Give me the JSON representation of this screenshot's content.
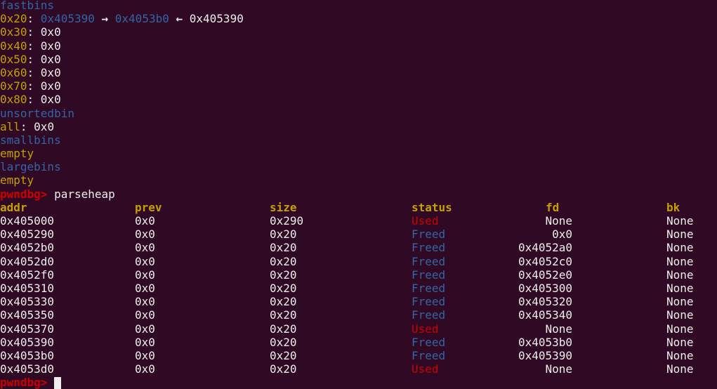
{
  "colors": {
    "background": "#300a24",
    "text": "#eeeeec",
    "yellow": "#c4a000",
    "blue": "#3465a4",
    "red": "#cc0000"
  },
  "fastbins": {
    "title": "fastbins",
    "chain": {
      "size": "0x20",
      "first": "0x405390",
      "arrow1": "→",
      "second": "0x4053b0",
      "arrow2": "←",
      "third": "0x405390"
    },
    "bins": [
      {
        "size": "0x30",
        "value": "0x0"
      },
      {
        "size": "0x40",
        "value": "0x0"
      },
      {
        "size": "0x50",
        "value": "0x0"
      },
      {
        "size": "0x60",
        "value": "0x0"
      },
      {
        "size": "0x70",
        "value": "0x0"
      },
      {
        "size": "0x80",
        "value": "0x0"
      }
    ]
  },
  "unsortedbin": {
    "title": "unsortedbin",
    "label": "all",
    "value": "0x0"
  },
  "smallbins": {
    "title": "smallbins",
    "value": "empty"
  },
  "largebins": {
    "title": "largebins",
    "value": "empty"
  },
  "prompt": {
    "text": "pwndbg>",
    "command": "parseheap"
  },
  "table": {
    "headers": {
      "addr": "addr",
      "prev": "prev",
      "size": "size",
      "status": "status",
      "fd": "fd",
      "bk": "bk"
    },
    "rows": [
      {
        "addr": "0x405000",
        "prev": "0x0",
        "size": "0x290",
        "status": "Used",
        "fd": "None",
        "bk": "None"
      },
      {
        "addr": "0x405290",
        "prev": "0x0",
        "size": "0x20",
        "status": "Freed",
        "fd": "0x0",
        "bk": "None"
      },
      {
        "addr": "0x4052b0",
        "prev": "0x0",
        "size": "0x20",
        "status": "Freed",
        "fd": "0x4052a0",
        "bk": "None"
      },
      {
        "addr": "0x4052d0",
        "prev": "0x0",
        "size": "0x20",
        "status": "Freed",
        "fd": "0x4052c0",
        "bk": "None"
      },
      {
        "addr": "0x4052f0",
        "prev": "0x0",
        "size": "0x20",
        "status": "Freed",
        "fd": "0x4052e0",
        "bk": "None"
      },
      {
        "addr": "0x405310",
        "prev": "0x0",
        "size": "0x20",
        "status": "Freed",
        "fd": "0x405300",
        "bk": "None"
      },
      {
        "addr": "0x405330",
        "prev": "0x0",
        "size": "0x20",
        "status": "Freed",
        "fd": "0x405320",
        "bk": "None"
      },
      {
        "addr": "0x405350",
        "prev": "0x0",
        "size": "0x20",
        "status": "Freed",
        "fd": "0x405340",
        "bk": "None"
      },
      {
        "addr": "0x405370",
        "prev": "0x0",
        "size": "0x20",
        "status": "Used",
        "fd": "None",
        "bk": "None"
      },
      {
        "addr": "0x405390",
        "prev": "0x0",
        "size": "0x20",
        "status": "Freed",
        "fd": "0x4053b0",
        "bk": "None"
      },
      {
        "addr": "0x4053b0",
        "prev": "0x0",
        "size": "0x20",
        "status": "Freed",
        "fd": "0x405390",
        "bk": "None"
      },
      {
        "addr": "0x4053d0",
        "prev": "0x0",
        "size": "0x20",
        "status": "Used",
        "fd": "None",
        "bk": "None"
      }
    ]
  }
}
